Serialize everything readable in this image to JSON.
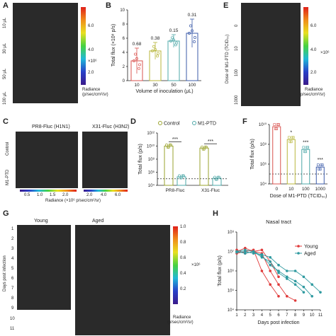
{
  "panels": {
    "A": {
      "letter": "A",
      "rows": [
        "10 μL",
        "30 μL",
        "50 μL",
        "100 μL"
      ],
      "scale_ticks": [
        "6.0",
        "4.0",
        "2.0"
      ],
      "scale_unit": "×10⁶",
      "scale_label": "Radiance",
      "scale_label2": "(p/sec/cm²/sr)"
    },
    "B": {
      "letter": "B"
    },
    "C": {
      "letter": "C",
      "col1": "PR8-Fluc (H1N1)",
      "col2": "X31-Fluc (H3N2)",
      "rows": [
        "Control",
        "M1-PTD"
      ],
      "bar_ticks_1": [
        "0.5",
        "1.0",
        "1.5",
        "2.0"
      ],
      "bar_ticks_2": [
        "2.0",
        "4.0",
        "6.0"
      ],
      "bar_label": "Radiance (×10⁶ p/sec/cm²/sr)"
    },
    "D": {
      "letter": "D"
    },
    "E": {
      "letter": "E",
      "ylabel": "Dose of M1-PTD (TCID₅₀)",
      "rows": [
        "0",
        "10",
        "100",
        "1000"
      ],
      "scale_ticks": [
        "6.0",
        "4.0",
        "2.0"
      ],
      "scale_unit": "×10⁶",
      "scale_label": "Radiance",
      "scale_label2": "(p/sec/cm²/sr)"
    },
    "F": {
      "letter": "F"
    },
    "G": {
      "letter": "G",
      "col1": "Young",
      "col2": "Aged",
      "ylabel": "Days post infection",
      "days": [
        "1",
        "2",
        "3",
        "4",
        "5",
        "6",
        "7",
        "8",
        "9",
        "10",
        "11"
      ],
      "scale_ticks": [
        "1.0",
        "0.8",
        "0.6",
        "0.4",
        "0.2"
      ],
      "scale_unit": "×10⁶",
      "scale_label": "Radiance",
      "scale_label2": "(p/sec/cm²/sr)"
    },
    "H": {
      "letter": "H"
    }
  },
  "chart_data": [
    {
      "id": "B",
      "type": "bar",
      "categories": [
        "10",
        "30",
        "50",
        "100"
      ],
      "values": [
        2.8,
        4.2,
        5.6,
        6.7
      ],
      "errors": [
        1.8,
        1.2,
        0.9,
        2.0
      ],
      "annotations": [
        "0.68",
        "0.38",
        "0.15",
        "0.31"
      ],
      "xlabel": "Volume of inoculation (μL)",
      "ylabel": "Total flux (×10⁸ p/s)",
      "yticks": [
        "0",
        "2",
        "4",
        "6",
        "8",
        "10"
      ],
      "ylim": [
        0,
        10
      ],
      "colors": [
        "#d9534f",
        "#b8b63a",
        "#4ea8a8",
        "#3b5ba9"
      ]
    },
    {
      "id": "D",
      "type": "bar",
      "categories": [
        "PR8-Fluc",
        "X31-Fluc"
      ],
      "legend": [
        "Control",
        "M1-PTD"
      ],
      "series": [
        {
          "name": "Control",
          "values": [
            10000000000.0,
            5000000000.0
          ],
          "color": "#9aa32c"
        },
        {
          "name": "M1-PTD",
          "values": [
            200000.0,
            120000.0
          ],
          "color": "#4ea8a8"
        }
      ],
      "significance": [
        "***",
        "***"
      ],
      "ylabel": "Total flux (p/s)",
      "yticks": [
        "10⁴",
        "10⁶",
        "10⁸",
        "10¹⁰",
        "10¹²"
      ],
      "ylim": [
        10000.0,
        1000000000000.0
      ],
      "y_scale": "log",
      "dashed_line": 100000.0
    },
    {
      "id": "F",
      "type": "bar",
      "categories": [
        "0",
        "10",
        "100",
        "1000"
      ],
      "values": [
        6000000000.0,
        300000000.0,
        30000000.0,
        500000.0
      ],
      "colors": [
        "#d9534f",
        "#b8b63a",
        "#4ea8a8",
        "#3b5ba9"
      ],
      "significance": [
        "",
        "*",
        "***",
        "***"
      ],
      "xlabel": "Dose of M1-PTD (TCID₅₀)",
      "ylabel": "Total flux (p/s)",
      "yticks": [
        "10⁴",
        "10⁶",
        "10⁸",
        "10¹⁰"
      ],
      "ylim": [
        10000.0,
        10000000000.0
      ],
      "y_scale": "log",
      "dashed_line": 100000.0
    },
    {
      "id": "H",
      "type": "line",
      "title": "Nasal tract",
      "xlabel": "Days post infection",
      "ylabel": "Total flux (p/s)",
      "x": [
        1,
        2,
        3,
        4,
        5,
        6,
        7,
        8,
        9,
        10,
        11
      ],
      "yticks": [
        "10⁴",
        "10⁵",
        "10⁶",
        "10⁷",
        "10⁸"
      ],
      "ylim": [
        10000.0,
        100000000.0
      ],
      "y_scale": "log",
      "legend": [
        "Young",
        "Aged"
      ],
      "series": [
        {
          "name": "Young",
          "color": "#e03a3a",
          "lines": [
            [
              [
                1,
                10000000.0
              ],
              [
                2,
                15000000.0
              ],
              [
                3,
                10000000.0
              ],
              [
                4,
                8000000.0
              ],
              [
                5,
                1000000.0
              ],
              [
                6,
                200000.0
              ],
              [
                7,
                50000.0
              ],
              [
                8,
                30000.0
              ]
            ],
            [
              [
                1,
                8000000.0
              ],
              [
                2,
                10000000.0
              ],
              [
                3,
                12000000.0
              ],
              [
                4,
                1000000.0
              ],
              [
                5,
                200000.0
              ],
              [
                6,
                50000.0
              ]
            ],
            [
              [
                1,
                12000000.0
              ],
              [
                2,
                8000000.0
              ],
              [
                3,
                10000000.0
              ],
              [
                4,
                12000000.0
              ],
              [
                5,
                3000000.0
              ],
              [
                6,
                500000.0
              ]
            ]
          ]
        },
        {
          "name": "Aged",
          "color": "#2f9aa0",
          "lines": [
            [
              [
                1,
                10000000.0
              ],
              [
                2,
                8000000.0
              ],
              [
                3,
                10000000.0
              ],
              [
                4,
                6000000.0
              ],
              [
                5,
                2000000.0
              ],
              [
                6,
                1000000.0
              ],
              [
                7,
                500000.0
              ],
              [
                8,
                300000.0
              ],
              [
                9,
                150000.0
              ],
              [
                10,
                50000.0
              ]
            ],
            [
              [
                1,
                9000000.0
              ],
              [
                2,
                10000000.0
              ],
              [
                3,
                8000000.0
              ],
              [
                4,
                7000000.0
              ],
              [
                5,
                5000000.0
              ],
              [
                6,
                2000000.0
              ],
              [
                7,
                1000000.0
              ],
              [
                8,
                1000000.0
              ],
              [
                9,
                500000.0
              ],
              [
                10,
                200000.0
              ],
              [
                11,
                80000.0
              ]
            ],
            [
              [
                1,
                10000000.0
              ],
              [
                2,
                12000000.0
              ],
              [
                3,
                10000000.0
              ],
              [
                4,
                5000000.0
              ],
              [
                5,
                3000000.0
              ],
              [
                6,
                800000.0
              ],
              [
                7,
                400000.0
              ],
              [
                8,
                200000.0
              ],
              [
                9,
                80000.0
              ]
            ]
          ]
        }
      ]
    }
  ]
}
